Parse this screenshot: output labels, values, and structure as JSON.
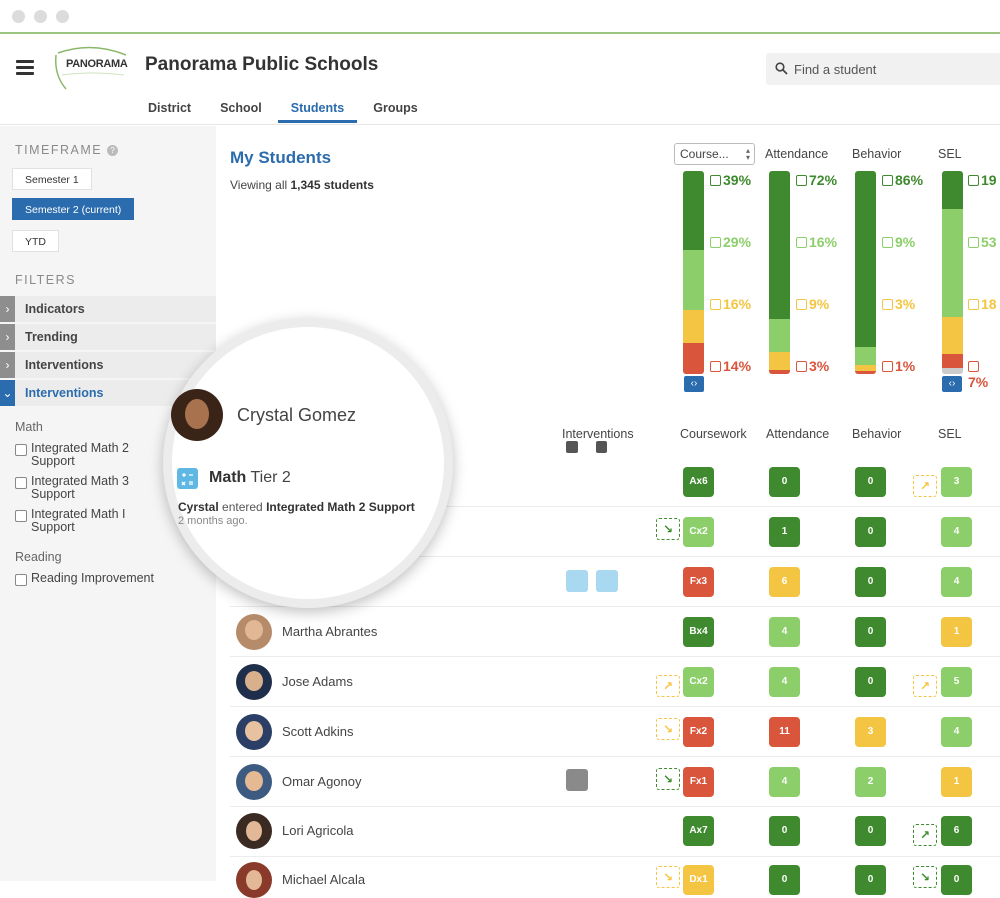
{
  "header": {
    "logo_text": "PANORAMA",
    "org_name": "Panorama Public Schools",
    "nav": [
      "District",
      "School",
      "Students",
      "Groups"
    ],
    "active_nav": "Students",
    "search_placeholder": "Find a student"
  },
  "sidebar": {
    "timeframe_label": "TIMEFRAME",
    "timeframe_buttons": [
      "Semester 1",
      "Semester 2 (current)",
      "YTD"
    ],
    "active_timeframe": "Semester 2 (current)",
    "filters_label": "FILTERS",
    "filter_rows": [
      "Indicators",
      "Trending",
      "Interventions",
      "Interventions"
    ],
    "math_group": "Math",
    "math_options": [
      "Integrated Math 2 Support",
      "Integrated Math 3 Support",
      "Integrated Math I Support"
    ],
    "reading_group": "Reading",
    "reading_options": [
      "Reading Improvement"
    ]
  },
  "main": {
    "title": "My Students",
    "viewing_prefix": "Viewing all",
    "viewing_count": "1,345 students",
    "course_select": "Course...",
    "summary_headers": [
      "Attendance",
      "Behavior",
      "SEL"
    ],
    "coursework_pcts": [
      "39%",
      "29%",
      "16%",
      "14%"
    ],
    "attendance_pcts": [
      "72%",
      "16%",
      "9%",
      "3%"
    ],
    "behavior_pcts": [
      "86%",
      "9%",
      "3%",
      "1%"
    ],
    "sel_pcts": [
      "19",
      "53",
      "18",
      "7%"
    ],
    "table_headers": [
      "Interventions",
      "Coursework",
      "Attendance",
      "Behavior",
      "SEL"
    ]
  },
  "colors": {
    "dark_green": "#3f8a2e",
    "light_green": "#8ccf6a",
    "yellow": "#f4c542",
    "red": "#d9553c",
    "brand_blue": "#2b6cae"
  },
  "magnify": {
    "name": "Crystal Gomez",
    "subject": "Math",
    "tier": "Tier 2",
    "line_name": "Cyrstal",
    "line_verb": "entered",
    "line_program": "Integrated Math 2 Support",
    "ago": "2 months ago."
  },
  "students": [
    {
      "name": "",
      "coursework": "Ax6",
      "attendance": "0",
      "behavior": "0",
      "sel": "3"
    },
    {
      "name": "",
      "coursework": "Cx2",
      "attendance": "1",
      "behavior": "0",
      "sel": "4"
    },
    {
      "name": "",
      "coursework": "Fx3",
      "attendance": "6",
      "behavior": "0",
      "sel": "4"
    },
    {
      "name": "Martha Abrantes",
      "coursework": "Bx4",
      "attendance": "4",
      "behavior": "0",
      "sel": "1"
    },
    {
      "name": "Jose Adams",
      "coursework": "Cx2",
      "attendance": "4",
      "behavior": "0",
      "sel": "5"
    },
    {
      "name": "Scott Adkins",
      "coursework": "Fx2",
      "attendance": "11",
      "behavior": "3",
      "sel": "4"
    },
    {
      "name": "Omar Agonoy",
      "coursework": "Fx1",
      "attendance": "4",
      "behavior": "2",
      "sel": "1"
    },
    {
      "name": "Lori Agricola",
      "coursework": "Ax7",
      "attendance": "0",
      "behavior": "0",
      "sel": "6"
    },
    {
      "name": "Michael Alcala",
      "coursework": "Dx1",
      "attendance": "0",
      "behavior": "0",
      "sel": "0"
    }
  ]
}
